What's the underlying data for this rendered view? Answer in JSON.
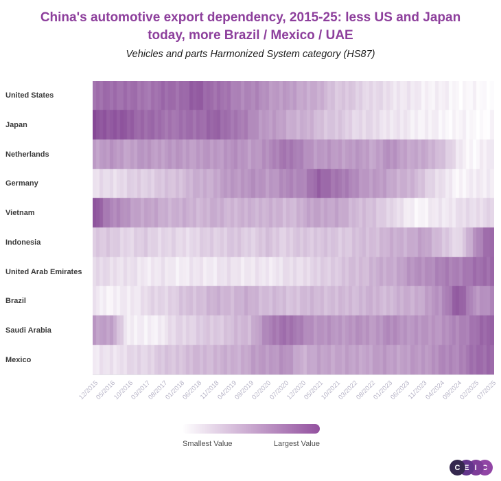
{
  "header": {
    "title_line1": "China's automotive export dependency, 2015-25: less US and Japan",
    "title_line2": "today, more Brazil / Mexico / UAE",
    "subtitle": "Vehicles and parts Harmonized System category (HS87)"
  },
  "chart_data": {
    "type": "heatmap",
    "x_start": "12/2015",
    "x_end": "07/2025",
    "months_total": 116,
    "x_tick_labels": [
      "12/2015",
      "05/2016",
      "10/2016",
      "03/2017",
      "08/2017",
      "01/2018",
      "06/2018",
      "11/2018",
      "04/2019",
      "09/2019",
      "02/2020",
      "07/2020",
      "12/2020",
      "05/2021",
      "10/2021",
      "03/2022",
      "08/2022",
      "01/2023",
      "06/2023",
      "11/2023",
      "04/2024",
      "09/2024",
      "02/2025",
      "07/2025"
    ],
    "value_scale_note": "relative intensity 0 = smallest value (white), 1 = largest value (dark purple); values sampled at the 24 tick months",
    "rows": [
      {
        "label": "United States",
        "values_at_ticks": [
          0.7,
          0.75,
          0.72,
          0.7,
          0.73,
          0.76,
          0.82,
          0.74,
          0.65,
          0.62,
          0.55,
          0.5,
          0.46,
          0.4,
          0.3,
          0.26,
          0.2,
          0.16,
          0.12,
          0.09,
          0.07,
          0.05,
          0.03,
          0.02
        ]
      },
      {
        "label": "Japan",
        "values_at_ticks": [
          0.88,
          0.85,
          0.82,
          0.75,
          0.72,
          0.7,
          0.75,
          0.78,
          0.72,
          0.6,
          0.52,
          0.45,
          0.4,
          0.34,
          0.28,
          0.22,
          0.18,
          0.14,
          0.11,
          0.08,
          0.06,
          0.05,
          0.03,
          0.02
        ]
      },
      {
        "label": "Netherlands",
        "values_at_ticks": [
          0.5,
          0.52,
          0.48,
          0.52,
          0.5,
          0.52,
          0.5,
          0.52,
          0.55,
          0.52,
          0.55,
          0.72,
          0.6,
          0.52,
          0.5,
          0.52,
          0.46,
          0.55,
          0.48,
          0.42,
          0.36,
          0.12,
          0.04,
          0.1
        ]
      },
      {
        "label": "Germany",
        "values_at_ticks": [
          0.15,
          0.18,
          0.22,
          0.25,
          0.28,
          0.34,
          0.4,
          0.44,
          0.52,
          0.55,
          0.52,
          0.58,
          0.62,
          0.78,
          0.72,
          0.58,
          0.52,
          0.46,
          0.4,
          0.3,
          0.15,
          0.06,
          0.08,
          0.12
        ]
      },
      {
        "label": "Vietnam",
        "values_at_ticks": [
          0.88,
          0.62,
          0.52,
          0.46,
          0.42,
          0.4,
          0.38,
          0.4,
          0.38,
          0.38,
          0.4,
          0.35,
          0.4,
          0.48,
          0.44,
          0.38,
          0.3,
          0.25,
          0.1,
          0.06,
          0.12,
          0.15,
          0.18,
          0.22
        ]
      },
      {
        "label": "Indonesia",
        "values_at_ticks": [
          0.3,
          0.26,
          0.22,
          0.25,
          0.22,
          0.18,
          0.22,
          0.25,
          0.28,
          0.25,
          0.3,
          0.25,
          0.28,
          0.3,
          0.28,
          0.3,
          0.34,
          0.38,
          0.42,
          0.46,
          0.35,
          0.15,
          0.55,
          0.78
        ]
      },
      {
        "label": "United Arab Emirates",
        "values_at_ticks": [
          0.18,
          0.18,
          0.15,
          0.12,
          0.12,
          0.1,
          0.12,
          0.12,
          0.15,
          0.12,
          0.12,
          0.15,
          0.18,
          0.22,
          0.28,
          0.32,
          0.38,
          0.42,
          0.5,
          0.58,
          0.62,
          0.66,
          0.7,
          0.78
        ]
      },
      {
        "label": "Brazil",
        "values_at_ticks": [
          0.12,
          0.07,
          0.1,
          0.18,
          0.22,
          0.28,
          0.34,
          0.38,
          0.38,
          0.4,
          0.35,
          0.32,
          0.33,
          0.36,
          0.33,
          0.36,
          0.38,
          0.36,
          0.4,
          0.45,
          0.55,
          0.85,
          0.55,
          0.58
        ]
      },
      {
        "label": "Saudi Arabia",
        "values_at_ticks": [
          0.52,
          0.46,
          0.1,
          0.06,
          0.12,
          0.22,
          0.25,
          0.28,
          0.32,
          0.38,
          0.6,
          0.75,
          0.62,
          0.55,
          0.52,
          0.55,
          0.52,
          0.58,
          0.55,
          0.52,
          0.55,
          0.6,
          0.72,
          0.78
        ]
      },
      {
        "label": "Mexico",
        "values_at_ticks": [
          0.1,
          0.15,
          0.18,
          0.22,
          0.28,
          0.32,
          0.35,
          0.38,
          0.4,
          0.46,
          0.52,
          0.55,
          0.42,
          0.45,
          0.48,
          0.45,
          0.48,
          0.5,
          0.48,
          0.52,
          0.58,
          0.62,
          0.72,
          0.78
        ]
      }
    ],
    "colorscale": {
      "min_color": "#ffffff",
      "max_color": "#7d3a8e"
    },
    "legend": {
      "min_label": "Smallest Value",
      "max_label": "Largest Value",
      "bar_start_color": "#ffffff",
      "bar_end_color": "#93519f"
    },
    "grid": false,
    "legend_position": "bottom-center"
  },
  "colors": {
    "title": "#8d3f9c",
    "row_label": "#3a3a3a",
    "tick_label": "#b6b3c6",
    "legend_label": "#4f4f4f"
  },
  "branding": {
    "logo_letters": [
      "C",
      "E",
      "I",
      "C"
    ],
    "logo_circle_colors": [
      "#35284e",
      "#63358b",
      "#7e3d99",
      "#9145a5"
    ]
  }
}
